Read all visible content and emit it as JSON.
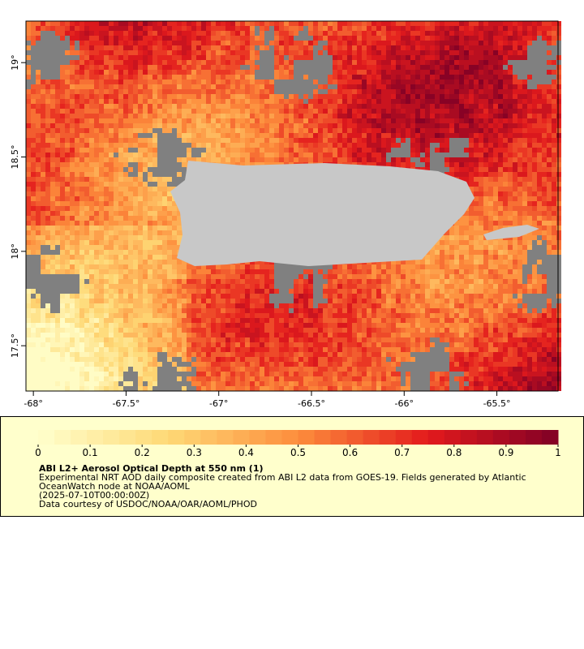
{
  "map": {
    "lonlim": [
      -68.04,
      -65.17
    ],
    "latlim": [
      17.26,
      19.22
    ],
    "lon_ticks": [
      {
        "value": -68,
        "label": "-68°"
      },
      {
        "value": -67.5,
        "label": "-67.5°"
      },
      {
        "value": -67,
        "label": "-67°"
      },
      {
        "value": -66.5,
        "label": "-66.5°"
      },
      {
        "value": -66,
        "label": "-66°"
      },
      {
        "value": -65.5,
        "label": "-65.5°"
      }
    ],
    "lat_ticks": [
      {
        "value": 19,
        "label": "19°"
      },
      {
        "value": 18.5,
        "label": "18.5°"
      },
      {
        "value": 18,
        "label": "18°"
      },
      {
        "value": 17.5,
        "label": "17.5°"
      }
    ]
  },
  "colorbar": {
    "lim": [
      0,
      1
    ],
    "ticks": [
      0,
      0.1,
      0.2,
      0.3,
      0.4,
      0.5,
      0.6,
      0.7,
      0.8,
      0.9,
      1
    ]
  },
  "legend": {
    "title": "ABI L2+ Aerosol Optical Depth at 550 nm (1)",
    "lines": [
      "Experimental NRT AOD daily composite created from ABI L2 data from GOES-19. Fields generated by Atlantic",
      "OceanWatch node at NOAA/AOML",
      "(2025-07-10T00:00:00Z)",
      "Data courtesy of USDOC/NOAA/OAR/AOML/PHOD"
    ]
  }
}
